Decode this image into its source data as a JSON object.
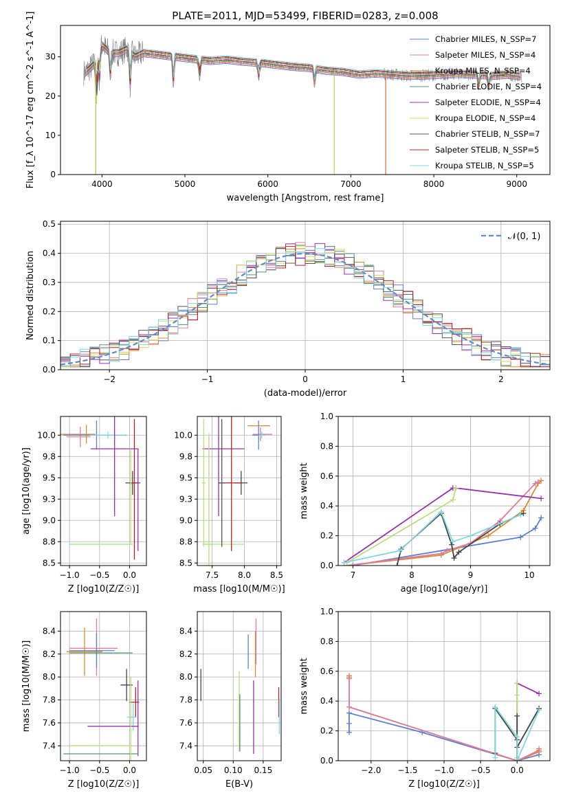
{
  "chart_data": [
    {
      "id": "spectrum",
      "type": "line",
      "title": "PLATE=2011, MJD=53499, FIBERID=0283, z=0.008",
      "xlabel": "wavelength [Angstrom, rest frame]",
      "ylabel": "Flux [f_λ 10^-17 erg cm^-2 s^-1 A^-1]",
      "xlim": [
        3500,
        9400
      ],
      "ylim": [
        0,
        38
      ],
      "xticks": [
        4000,
        5000,
        6000,
        7000,
        8000,
        9000
      ],
      "yticks": [
        0,
        10,
        20,
        30
      ],
      "grid": false,
      "legend_position": "top-right",
      "series": [
        {
          "name": "Chabrier MILES, N_SSP=7",
          "color": "#5b7fd6"
        },
        {
          "name": "Salpeter MILES, N_SSP=4",
          "color": "#e07ba0"
        },
        {
          "name": "Kroupa MILES, N_SSP=4",
          "color": "#d98b2b"
        },
        {
          "name": "Chabrier ELODIE, N_SSP=4",
          "color": "#4a9a6a"
        },
        {
          "name": "Salpeter ELODIE, N_SSP=4",
          "color": "#9b30b0"
        },
        {
          "name": "Kroupa ELODIE, N_SSP=4",
          "color": "#d9d95a"
        },
        {
          "name": "Chabrier STELIB, N_SSP=7",
          "color": "#555555"
        },
        {
          "name": "Salpeter STELIB, N_SSP=5",
          "color": "#b22222"
        },
        {
          "name": "Kroupa STELIB, N_SSP=5",
          "color": "#7fd8e0"
        }
      ],
      "continuum": {
        "x": [
          3800,
          3900,
          4000,
          4100,
          4200,
          4300,
          4400,
          4500,
          4700,
          4900,
          5100,
          5300,
          5500,
          5700,
          5900,
          6100,
          6300,
          6500,
          6700,
          6900,
          7100,
          7300,
          7500,
          7700,
          7900,
          8100,
          8300,
          8500,
          8700,
          8900,
          9050
        ],
        "y": [
          26,
          28,
          33,
          31,
          31,
          32,
          30,
          31,
          30.5,
          30,
          29.5,
          29,
          29.3,
          28.8,
          28.5,
          28,
          27.5,
          27.2,
          26.5,
          26.2,
          25.5,
          25.8,
          25.5,
          25.2,
          25.3,
          25.5,
          25.7,
          25.5,
          25.2,
          25.5,
          25
        ]
      },
      "noise_trace_color": "#777777"
    },
    {
      "id": "residuals",
      "type": "line",
      "xlabel": "(data-model)/error",
      "ylabel": "Normed distribution",
      "xlim": [
        -2.5,
        2.5
      ],
      "ylim": [
        0,
        0.51
      ],
      "xticks": [
        -2,
        -1,
        0,
        1,
        2
      ],
      "yticks": [
        0.0,
        0.1,
        0.2,
        0.3,
        0.4,
        0.5
      ],
      "grid": true,
      "legend_position": "top-right",
      "legend_label": "𝒩(0, 1)",
      "bins": {
        "start": -2.5,
        "width": 0.1,
        "count": 50
      },
      "gaussian_color": "#5b8bd6"
    },
    {
      "id": "age-vs-Z",
      "type": "scatter",
      "xlabel": "Z [log10(Z/Z☉)]",
      "ylabel": "age  [log10(age/yr)]",
      "xlim": [
        -1.15,
        0.28
      ],
      "ylim": [
        8.47,
        10.22
      ],
      "xticks": [
        -1.0,
        -0.5,
        0.0
      ],
      "yticks": [
        8.5,
        8.75,
        9.0,
        9.25,
        9.5,
        9.75,
        10.0
      ],
      "grid": true,
      "errorbars": [
        {
          "x": -0.72,
          "y": 10.01,
          "xerr": [
            0.52,
            0.15
          ],
          "yerr": [
            0.11,
            0.11
          ],
          "color": "#d98b2b"
        },
        {
          "x": -0.82,
          "y": 9.98,
          "xerr": [
            0.23,
            0.17
          ],
          "yerr": [
            0.12,
            0.12
          ],
          "color": "#e07ba0"
        },
        {
          "x": -0.55,
          "y": 10.0,
          "xerr": [
            0.55,
            0.5
          ],
          "yerr": [
            0.17,
            0.17
          ],
          "color": "#5b7fd6"
        },
        {
          "x": -0.36,
          "y": 10.0,
          "xerr": [
            0.3,
            0.3
          ],
          "yerr": [
            0.04,
            0.04
          ],
          "color": "#7fd8e0"
        },
        {
          "x": -0.25,
          "y": 9.84,
          "xerr": [
            0.4,
            0.4
          ],
          "yerr": [
            0.79,
            0.79
          ],
          "color": "#9b30b0"
        },
        {
          "x": -0.45,
          "y": 8.72,
          "xerr": [
            0.55,
            0.5
          ],
          "yerr": [
            0.0,
            0.0
          ],
          "color": "#7fd8e0"
        },
        {
          "x": -0.45,
          "y": 8.72,
          "xerr": [
            0.5,
            0.5
          ],
          "yerr": [
            0.0,
            0.0
          ],
          "color": "#b8e07a"
        },
        {
          "x": 0.05,
          "y": 9.44,
          "xerr": [
            0.12,
            0.1
          ],
          "yerr": [
            0.14,
            0.14
          ],
          "color": "#444444"
        },
        {
          "x": 0.08,
          "y": 9.44,
          "xerr": [
            0.06,
            0.06
          ],
          "yerr": [
            0.9,
            0.75
          ],
          "color": "#b22222"
        },
        {
          "x": 0.14,
          "y": 9.44,
          "xerr": [
            0.04,
            0.04
          ],
          "yerr": [
            0.8,
            0.4
          ],
          "color": "#9b30b0"
        },
        {
          "x": 0.02,
          "y": 9.43,
          "xerr": [
            0.02,
            0.02
          ],
          "yerr": [
            0.7,
            0.4
          ],
          "color": "#b8e07a"
        }
      ]
    },
    {
      "id": "age-vs-mass",
      "type": "scatter",
      "xlabel": "mass [log10(M/M☉)]",
      "ylabel": "",
      "xlim": [
        7.27,
        8.57
      ],
      "ylim": [
        8.47,
        10.22
      ],
      "xticks": [
        7.5,
        8.0,
        8.5
      ],
      "yticks": [
        8.5,
        8.75,
        9.0,
        9.25,
        9.5,
        9.75,
        10.0
      ],
      "grid": true,
      "errorbars": [
        {
          "x": 8.2,
          "y": 10.11,
          "xerr": [
            0.15,
            0.2
          ],
          "yerr": [
            0.0,
            0.0
          ],
          "color": "#d98b2b"
        },
        {
          "x": 8.25,
          "y": 10.01,
          "xerr": [
            0.12,
            0.18
          ],
          "yerr": [
            0.08,
            0.08
          ],
          "color": "#e07ba0"
        },
        {
          "x": 8.22,
          "y": 10.0,
          "xerr": [
            0.1,
            0.1
          ],
          "yerr": [
            0.17,
            0.17
          ],
          "color": "#5b7fd6"
        },
        {
          "x": 8.27,
          "y": 10.0,
          "xerr": [
            0.05,
            0.05
          ],
          "yerr": [
            0.04,
            0.04
          ],
          "color": "#7fd8e0"
        },
        {
          "x": 7.6,
          "y": 9.84,
          "xerr": [
            0.25,
            0.4
          ],
          "yerr": [
            0.79,
            0.79
          ],
          "color": "#9b30b0"
        },
        {
          "x": 7.6,
          "y": 8.72,
          "xerr": [
            0.25,
            0.4
          ],
          "yerr": [
            0.0,
            0.0
          ],
          "color": "#b8e07a"
        },
        {
          "x": 7.45,
          "y": 8.72,
          "xerr": [
            0.1,
            0.1
          ],
          "yerr": [
            1.3,
            1.3
          ],
          "color": "#b8e07a"
        },
        {
          "x": 7.95,
          "y": 9.44,
          "xerr": [
            0.1,
            0.1
          ],
          "yerr": [
            0.14,
            0.14
          ],
          "color": "#444444"
        },
        {
          "x": 7.8,
          "y": 9.44,
          "xerr": [
            0.2,
            0.15
          ],
          "yerr": [
            0.8,
            0.8
          ],
          "color": "#b22222"
        },
        {
          "x": 7.65,
          "y": 9.44,
          "xerr": [
            0.05,
            0.05
          ],
          "yerr": [
            0.75,
            0.75
          ],
          "color": "#555555"
        },
        {
          "x": 7.37,
          "y": 9.44,
          "xerr": [
            0.03,
            0.03
          ],
          "yerr": [
            0.75,
            0.75
          ],
          "color": "#b8e07a"
        }
      ]
    },
    {
      "id": "weight-vs-age",
      "type": "line",
      "xlabel": "age  [log10(age/yr)]",
      "ylabel": "mass weight",
      "xlim": [
        6.75,
        10.35
      ],
      "ylim": [
        0,
        1.0
      ],
      "xticks": [
        7,
        8,
        9,
        10
      ],
      "yticks": [
        0.0,
        0.2,
        0.4,
        0.6,
        0.8,
        1.0
      ],
      "grid": true,
      "series": [
        {
          "color": "#5b7fd6",
          "x": [
            7.0,
            9.85,
            10.1,
            10.2
          ],
          "y": [
            0.0,
            0.19,
            0.25,
            0.32
          ]
        },
        {
          "color": "#d98b2b",
          "x": [
            6.9,
            8.5,
            9.3,
            9.9,
            10.15,
            10.2
          ],
          "y": [
            0.0,
            0.07,
            0.2,
            0.37,
            0.55,
            0.57
          ]
        },
        {
          "color": "#e07ba0",
          "x": [
            6.9,
            8.5,
            8.6,
            9.0,
            9.5,
            10.1,
            10.15
          ],
          "y": [
            0.0,
            0.08,
            0.1,
            0.15,
            0.3,
            0.55,
            0.56
          ]
        },
        {
          "color": "#9b30b0",
          "x": [
            6.85,
            8.7,
            8.75,
            10.2
          ],
          "y": [
            0.02,
            0.52,
            0.52,
            0.45
          ]
        },
        {
          "color": "#b8e07a",
          "x": [
            6.9,
            8.7,
            8.75
          ],
          "y": [
            0.02,
            0.44,
            0.52
          ]
        },
        {
          "color": "#444444",
          "x": [
            7.75,
            7.82,
            8.5,
            8.68,
            8.72,
            8.8,
            9.5,
            9.9
          ],
          "y": [
            0.0,
            0.11,
            0.35,
            0.14,
            0.05,
            0.09,
            0.28,
            0.35
          ]
        },
        {
          "color": "#7fd8e0",
          "x": [
            6.85,
            7.8,
            8.5,
            8.7,
            9.0,
            9.85
          ],
          "y": [
            0.02,
            0.1,
            0.36,
            0.16,
            0.2,
            0.34
          ]
        }
      ]
    },
    {
      "id": "mass-vs-Z",
      "type": "scatter",
      "xlabel": "Z [log10(Z/Z☉)]",
      "ylabel": "mass [log10(M/M☉)]",
      "xlim": [
        -1.15,
        0.28
      ],
      "ylim": [
        7.27,
        8.57
      ],
      "xticks": [
        -1.0,
        -0.5,
        0.0
      ],
      "yticks": [
        7.4,
        7.6,
        7.8,
        8.0,
        8.2,
        8.4
      ],
      "grid": true,
      "errorbars": [
        {
          "x": -0.55,
          "y": 8.25,
          "xerr": [
            0.45,
            0.35
          ],
          "yerr": [
            0.24,
            0.26
          ],
          "color": "#e07ba0"
        },
        {
          "x": -0.75,
          "y": 8.22,
          "xerr": [
            0.3,
            0.3
          ],
          "yerr": [
            0.21,
            0.21
          ],
          "color": "#d98b2b"
        },
        {
          "x": -0.55,
          "y": 8.23,
          "xerr": [
            0.45,
            0.3
          ],
          "yerr": [
            0.15,
            0.15
          ],
          "color": "#5b7fd6"
        },
        {
          "x": -0.45,
          "y": 8.21,
          "xerr": [
            0.55,
            0.5
          ],
          "yerr": [
            0.0,
            0.0
          ],
          "color": "#4a9a6a"
        },
        {
          "x": -0.05,
          "y": 7.93,
          "xerr": [
            0.1,
            0.1
          ],
          "yerr": [
            0.14,
            0.14
          ],
          "color": "#444444"
        },
        {
          "x": 0.1,
          "y": 7.78,
          "xerr": [
            0.1,
            0.06
          ],
          "yerr": [
            0.13,
            0.13
          ],
          "color": "#b22222"
        },
        {
          "x": 0.06,
          "y": 7.65,
          "xerr": [
            0.1,
            0.06
          ],
          "yerr": [
            0.12,
            0.12
          ],
          "color": "#7fd8e0"
        },
        {
          "x": -0.25,
          "y": 7.57,
          "xerr": [
            0.45,
            0.4
          ],
          "yerr": [
            0.0,
            0.0
          ],
          "color": "#9b30b0"
        },
        {
          "x": 0.14,
          "y": 7.57,
          "xerr": [
            0.01,
            0.01
          ],
          "yerr": [
            0.26,
            0.4
          ],
          "color": "#9b30b0"
        },
        {
          "x": -0.45,
          "y": 7.4,
          "xerr": [
            0.55,
            0.5
          ],
          "yerr": [
            0.0,
            0.0
          ],
          "color": "#b8e07a"
        },
        {
          "x": -0.5,
          "y": 7.33,
          "xerr": [
            0.6,
            0.65
          ],
          "yerr": [
            0.0,
            0.0
          ],
          "color": "#4a9a6a"
        },
        {
          "x": 0.02,
          "y": 7.6,
          "xerr": [
            0.01,
            0.01
          ],
          "yerr": [
            0.4,
            0.4
          ],
          "color": "#b8e07a"
        }
      ]
    },
    {
      "id": "mass-vs-EBV",
      "type": "scatter",
      "xlabel": "E(B-V)",
      "ylabel": "",
      "xlim": [
        0.04,
        0.18
      ],
      "ylim": [
        7.27,
        8.57
      ],
      "xticks": [
        0.05,
        0.1,
        0.15
      ],
      "yticks": [
        7.4,
        7.6,
        7.8,
        8.0,
        8.2,
        8.4
      ],
      "grid": true,
      "errorbars": [
        {
          "x": 0.046,
          "y": 7.93,
          "xerr": [
            0,
            0
          ],
          "yerr": [
            0.14,
            0.14
          ],
          "color": "#444444"
        },
        {
          "x": 0.11,
          "y": 7.7,
          "xerr": [
            0,
            0
          ],
          "yerr": [
            0.35,
            0.35
          ],
          "color": "#b8e07a"
        },
        {
          "x": 0.111,
          "y": 7.6,
          "xerr": [
            0,
            0
          ],
          "yerr": [
            0.25,
            0.25
          ],
          "color": "#4a9a6a"
        },
        {
          "x": 0.125,
          "y": 8.22,
          "xerr": [
            0,
            0
          ],
          "yerr": [
            0.15,
            0.15
          ],
          "color": "#5b7fd6"
        },
        {
          "x": 0.134,
          "y": 7.65,
          "xerr": [
            0,
            0
          ],
          "yerr": [
            0.32,
            0.32
          ],
          "color": "#9b30b0"
        },
        {
          "x": 0.137,
          "y": 8.2,
          "xerr": [
            0,
            0
          ],
          "yerr": [
            0.2,
            0.2
          ],
          "color": "#d98b2b"
        },
        {
          "x": 0.138,
          "y": 8.31,
          "xerr": [
            0,
            0
          ],
          "yerr": [
            0.2,
            0.2
          ],
          "color": "#e07ba0"
        },
        {
          "x": 0.176,
          "y": 7.78,
          "xerr": [
            0,
            0
          ],
          "yerr": [
            0.13,
            0.13
          ],
          "color": "#b22222"
        },
        {
          "x": 0.177,
          "y": 7.65,
          "xerr": [
            0,
            0
          ],
          "yerr": [
            0.15,
            0.15
          ],
          "color": "#7fd8e0"
        }
      ]
    },
    {
      "id": "weight-vs-Z",
      "type": "line",
      "xlabel": "Z [log10(Z/Z☉)]",
      "ylabel": "mass weight",
      "xlim": [
        -2.45,
        0.45
      ],
      "ylim": [
        0,
        1.0
      ],
      "xticks": [
        -2.0,
        -1.5,
        -1.0,
        -0.5,
        0.0
      ],
      "yticks": [
        0.0,
        0.2,
        0.4,
        0.6,
        0.8,
        1.0
      ],
      "grid": true,
      "series": [
        {
          "color": "#5b7fd6",
          "x": [
            -2.3,
            -2.3,
            -2.3,
            -1.3,
            0.0,
            0.3,
            0.3
          ],
          "y": [
            0.19,
            0.25,
            0.32,
            0.19,
            0.0,
            0.04,
            0.06
          ]
        },
        {
          "color": "#d98b2b",
          "x": [
            -2.3,
            -2.3,
            -2.3,
            0.0,
            0.3,
            0.3
          ],
          "y": [
            0.55,
            0.57,
            0.36,
            0.0,
            0.06,
            0.08
          ]
        },
        {
          "color": "#e07ba0",
          "x": [
            -2.3,
            -2.3,
            0.0,
            0.3
          ],
          "y": [
            0.56,
            0.36,
            0.0,
            0.07
          ]
        },
        {
          "color": "#9b30b0",
          "x": [
            0.0,
            0.0,
            0.3
          ],
          "y": [
            0.02,
            0.52,
            0.45
          ]
        },
        {
          "color": "#b8e07a",
          "x": [
            0.0,
            0.0,
            0.0
          ],
          "y": [
            0.02,
            0.44,
            0.52
          ]
        },
        {
          "color": "#444444",
          "x": [
            -0.3,
            -0.3,
            0.0,
            0.0,
            0.0,
            0.0,
            0.3
          ],
          "y": [
            0.05,
            0.35,
            0.14,
            0.3,
            0.0,
            0.09,
            0.35
          ]
        },
        {
          "color": "#7fd8e0",
          "x": [
            -0.3,
            -0.3,
            0.0,
            0.0,
            0.3
          ],
          "y": [
            0.02,
            0.36,
            0.16,
            0.0,
            0.34
          ]
        }
      ]
    }
  ]
}
